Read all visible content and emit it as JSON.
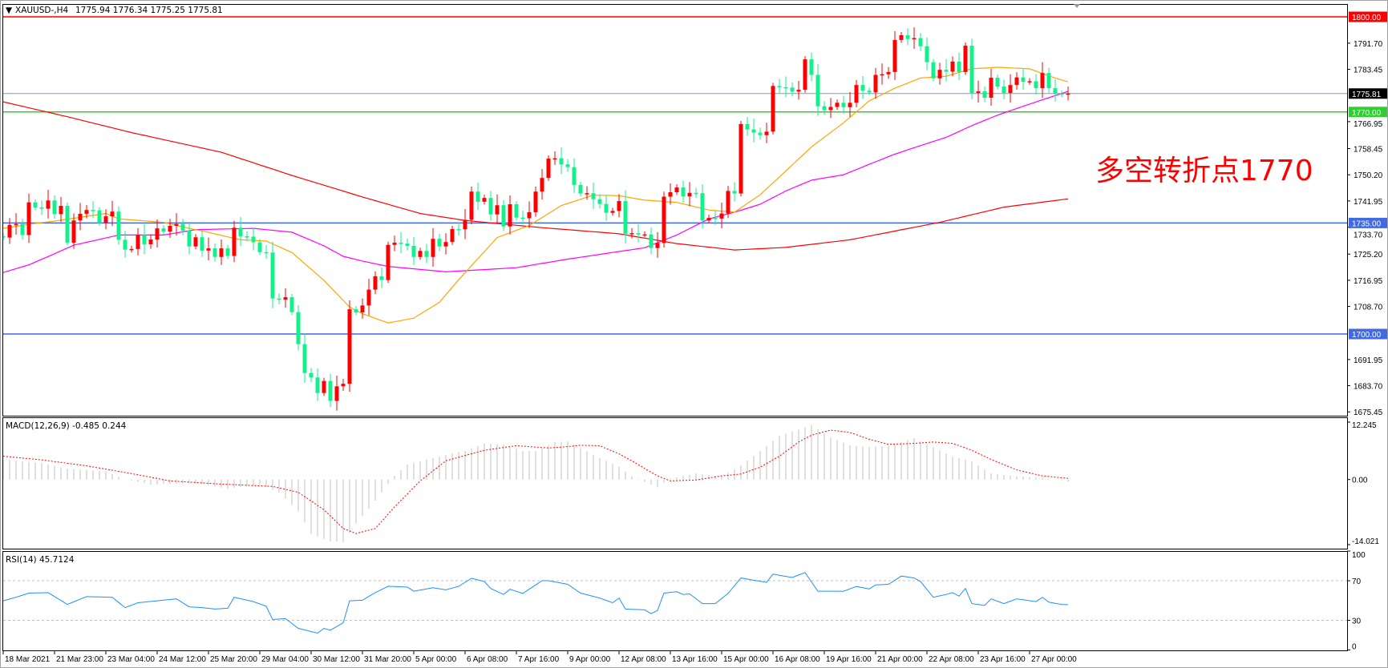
{
  "header": {
    "menu_arrow": "▼",
    "symbol": "XAUUSD-,H4",
    "ohlc": "1775.94 1776.34 1775.25 1775.81"
  },
  "annotation": "多空转折点1770",
  "colors": {
    "bull": "#ff0000",
    "bear": "#14f08c",
    "ma_fast": "#ffa500",
    "ma_mid": "#ff00ff",
    "ma_slow": "#ff0000",
    "macd_hist": "#c0c0c0",
    "macd_signal": "#ff0000",
    "rsi": "#1e90ff"
  },
  "price_axis": {
    "ticks": [
      "1791.70",
      "1783.45",
      "1766.95",
      "1758.45",
      "1750.20",
      "1741.95",
      "1733.70",
      "1725.20",
      "1716.95",
      "1708.70",
      "1691.95",
      "1683.70",
      "1675.45"
    ],
    "levels": [
      {
        "label": "1800.00",
        "color": "#ff0000",
        "line": "#ff0000"
      },
      {
        "label": "1770.00",
        "color": "#32cd32",
        "line": "#32cd32"
      },
      {
        "label": "1735.00",
        "color": "#4169e1",
        "line": "#4169e1"
      },
      {
        "label": "1700.00",
        "color": "#4169e1",
        "line": "#4169e1"
      }
    ],
    "current": {
      "label": "1775.81",
      "color": "#000000",
      "line": "#8a98a8"
    }
  },
  "time_axis": [
    "18 Mar 2021",
    "21 Mar 23:00",
    "23 Mar 04:00",
    "24 Mar 12:00",
    "25 Mar 20:00",
    "29 Mar 04:00",
    "30 Mar 12:00",
    "31 Mar 20:00",
    "5 Apr 00:00",
    "6 Apr 08:00",
    "7 Apr 16:00",
    "9 Apr 00:00",
    "12 Apr 08:00",
    "13 Apr 16:00",
    "15 Apr 00:00",
    "16 Apr 08:00",
    "19 Apr 16:00",
    "21 Apr 00:00",
    "22 Apr 08:00",
    "23 Apr 16:00",
    "27 Apr 00:00"
  ],
  "macd": {
    "title": "MACD(12,26,9) -0.485 0.244",
    "axis": [
      "12.245",
      "0.00",
      "-14.021"
    ]
  },
  "rsi": {
    "title": "RSI(14) 45.7124",
    "axis": [
      "100",
      "70",
      "30",
      "0"
    ],
    "levels": [
      70,
      30
    ]
  },
  "chart_data": {
    "type": "candlestick",
    "timeframe": "H4",
    "ylim": [
      1675.45,
      1800.0
    ],
    "first_open": 1730.8,
    "closes": [
      1730.4,
      1734.4,
      1734.7,
      1731.2,
      1741.5,
      1739.9,
      1739.5,
      1742.1,
      1737.8,
      1740.4,
      1728.8,
      1735.8,
      1737.9,
      1739.1,
      1739.0,
      1735.0,
      1737.1,
      1738.6,
      1729.7,
      1726.6,
      1726.8,
      1731.2,
      1728.3,
      1729.8,
      1733.3,
      1732.3,
      1734.1,
      1734.7,
      1732.6,
      1727.6,
      1730.5,
      1726.3,
      1727.0,
      1724.3,
      1727.0,
      1724.6,
      1733.5,
      1730.8,
      1730.7,
      1728.9,
      1725.8,
      1725.7,
      1711.2,
      1710.8,
      1711.6,
      1706.9,
      1696.8,
      1687.7,
      1686.3,
      1681.4,
      1685.2,
      1678.9,
      1683.5,
      1684.3,
      1707.8,
      1706.8,
      1709.0,
      1714.0,
      1718.2,
      1717.0,
      1728.1,
      1728.8,
      1728.5,
      1727.8,
      1724.3,
      1726.2,
      1724.3,
      1730.0,
      1727.6,
      1729.0,
      1733.1,
      1733.0,
      1736.0,
      1744.9,
      1741.7,
      1742.9,
      1737.7,
      1740.6,
      1733.9,
      1740.9,
      1736.7,
      1736.5,
      1738.4,
      1744.9,
      1749.2,
      1755.3,
      1755.4,
      1753.5,
      1752.6,
      1747.0,
      1744.3,
      1744.4,
      1742.5,
      1741.0,
      1738.2,
      1738.8,
      1741.9,
      1731.6,
      1731.8,
      1731.4,
      1731.4,
      1727.1,
      1728.7,
      1743.3,
      1744.7,
      1746.2,
      1743.4,
      1744.5,
      1744.4,
      1735.8,
      1736.6,
      1736.4,
      1738.0,
      1745.1,
      1744.3,
      1766.2,
      1764.5,
      1763.5,
      1762.7,
      1763.8,
      1778.2,
      1777.8,
      1777.7,
      1776.4,
      1777.0,
      1786.6,
      1781.7,
      1771.8,
      1770.6,
      1771.6,
      1772.9,
      1771.5,
      1772.9,
      1778.5,
      1776.7,
      1776.2,
      1781.7,
      1781.9,
      1782.6,
      1792.7,
      1794.2,
      1793.0,
      1793.3,
      1790.7,
      1785.7,
      1780.6,
      1783.3,
      1782.7,
      1785.9,
      1782.6,
      1790.9,
      1776.0,
      1776.5,
      1774.5,
      1780.8,
      1778.0,
      1776.0,
      1778.5,
      1780.9,
      1779.5,
      1779.7,
      1777.5,
      1782.3,
      1777.5,
      1775.8,
      1775.6,
      1775.81
    ],
    "horizontal_levels": [
      1800.0,
      1770.0,
      1735.0,
      1700.0
    ],
    "current_price": 1775.81,
    "moving_averages": {
      "fast": [
        [
          0,
          1733.3
        ],
        [
          4,
          1734.6
        ],
        [
          8,
          1735.6
        ],
        [
          16,
          1738
        ],
        [
          18,
          1736.3
        ],
        [
          25,
          1735.2
        ],
        [
          29,
          1733.3
        ],
        [
          31,
          1732.5
        ],
        [
          37,
          1729.7
        ],
        [
          41,
          1729.3
        ],
        [
          45,
          1725.7
        ],
        [
          50,
          1716.9
        ],
        [
          54,
          1708.5
        ],
        [
          56,
          1706.4
        ],
        [
          60,
          1703.5
        ],
        [
          64,
          1705
        ],
        [
          68,
          1710
        ],
        [
          71,
          1717.1
        ],
        [
          77,
          1730.4
        ],
        [
          82,
          1734.2
        ],
        [
          87,
          1740.5
        ],
        [
          92,
          1743.8
        ],
        [
          96,
          1743.6
        ],
        [
          100,
          1742.2
        ],
        [
          105,
          1741.5
        ],
        [
          110,
          1739.1
        ],
        [
          114,
          1738.4
        ],
        [
          118,
          1743.9
        ],
        [
          122,
          1751.4
        ],
        [
          126,
          1759
        ],
        [
          131,
          1766.6
        ],
        [
          135,
          1773.5
        ],
        [
          139,
          1777.5
        ],
        [
          143,
          1780.7
        ],
        [
          147,
          1781.3
        ],
        [
          151,
          1783.6
        ],
        [
          155,
          1784.1
        ],
        [
          160,
          1783.6
        ],
        [
          164,
          1780.7
        ],
        [
          166,
          1779.5
        ]
      ],
      "mid": [
        [
          0,
          1719.4
        ],
        [
          4,
          1721.8
        ],
        [
          8,
          1725.3
        ],
        [
          11,
          1728
        ],
        [
          18,
          1731.2
        ],
        [
          25,
          1731.2
        ],
        [
          30,
          1732.9
        ],
        [
          39,
          1733.3
        ],
        [
          45,
          1732.1
        ],
        [
          50,
          1727.8
        ],
        [
          53,
          1724.5
        ],
        [
          56,
          1723
        ],
        [
          60,
          1721.3
        ],
        [
          69,
          1719.6
        ],
        [
          80,
          1720.9
        ],
        [
          88,
          1723.6
        ],
        [
          96,
          1726
        ],
        [
          100,
          1727.2
        ],
        [
          105,
          1731.2
        ],
        [
          110,
          1736.3
        ],
        [
          114,
          1738.4
        ],
        [
          118,
          1740.9
        ],
        [
          122,
          1745.1
        ],
        [
          126,
          1748.5
        ],
        [
          131,
          1750.2
        ],
        [
          135,
          1753.5
        ],
        [
          139,
          1756.7
        ],
        [
          143,
          1759.4
        ],
        [
          147,
          1762
        ],
        [
          151,
          1765.7
        ],
        [
          155,
          1769
        ],
        [
          160,
          1772.5
        ],
        [
          166,
          1776.5
        ]
      ],
      "slow": [
        [
          0,
          1773.2
        ],
        [
          10,
          1768.5
        ],
        [
          20,
          1763.5
        ],
        [
          34,
          1757.3
        ],
        [
          45,
          1750
        ],
        [
          56,
          1743.2
        ],
        [
          65,
          1738
        ],
        [
          72,
          1735.8
        ],
        [
          83,
          1733.7
        ],
        [
          96,
          1731.6
        ],
        [
          105,
          1728.5
        ],
        [
          114,
          1726.5
        ],
        [
          122,
          1727.3
        ],
        [
          132,
          1729.7
        ],
        [
          146,
          1735.2
        ],
        [
          156,
          1740
        ],
        [
          166,
          1742.6
        ]
      ]
    },
    "macd_hist": [
      [
        0,
        4.4
      ],
      [
        6,
        3.6
      ],
      [
        10,
        2.4
      ],
      [
        16,
        1.8
      ],
      [
        19,
        0
      ],
      [
        23,
        -1.1
      ],
      [
        30,
        -0.8
      ],
      [
        35,
        -2.0
      ],
      [
        40,
        -1.1
      ],
      [
        43,
        -2.8
      ],
      [
        46,
        -6.9
      ],
      [
        48,
        -11.9
      ],
      [
        51,
        -13.5
      ],
      [
        53,
        -13.7
      ],
      [
        55,
        -9.6
      ],
      [
        57,
        -6.4
      ],
      [
        59,
        -2.8
      ],
      [
        61,
        0.8
      ],
      [
        63,
        3.3
      ],
      [
        67,
        4.7
      ],
      [
        72,
        6.3
      ],
      [
        75,
        7.9
      ],
      [
        78,
        7.7
      ],
      [
        81,
        6.2
      ],
      [
        83,
        6.2
      ],
      [
        85,
        7.5
      ],
      [
        86,
        8.2
      ],
      [
        88,
        8.3
      ],
      [
        90,
        6.9
      ],
      [
        93,
        4.7
      ],
      [
        96,
        2.8
      ],
      [
        98,
        0.7
      ],
      [
        100,
        -0.5
      ],
      [
        102,
        -1.7
      ],
      [
        104,
        0.2
      ],
      [
        108,
        1.3
      ],
      [
        112,
        0.7
      ],
      [
        115,
        3.1
      ],
      [
        118,
        6.2
      ],
      [
        121,
        9.6
      ],
      [
        124,
        10.9
      ],
      [
        126,
        11.9
      ],
      [
        129,
        9.2
      ],
      [
        132,
        7.5
      ],
      [
        135,
        7.1
      ],
      [
        138,
        7.4
      ],
      [
        142,
        9.0
      ],
      [
        145,
        7.1
      ],
      [
        148,
        5.0
      ],
      [
        151,
        4.0
      ],
      [
        154,
        1.3
      ],
      [
        158,
        0.7
      ],
      [
        162,
        0.4
      ],
      [
        166,
        -0.485
      ]
    ],
    "macd_signal": [
      [
        0,
        5.1
      ],
      [
        6,
        4.3
      ],
      [
        13,
        3.0
      ],
      [
        20,
        1.3
      ],
      [
        26,
        -0.3
      ],
      [
        34,
        -1.0
      ],
      [
        42,
        -1.5
      ],
      [
        46,
        -2.8
      ],
      [
        50,
        -6.6
      ],
      [
        53,
        -10.7
      ],
      [
        55,
        -11.8
      ],
      [
        58,
        -10.7
      ],
      [
        61,
        -6.0
      ],
      [
        65,
        -0.3
      ],
      [
        69,
        4.1
      ],
      [
        75,
        6.4
      ],
      [
        80,
        7.4
      ],
      [
        85,
        6.9
      ],
      [
        88,
        7.2
      ],
      [
        90,
        7.5
      ],
      [
        93,
        7.4
      ],
      [
        96,
        5.6
      ],
      [
        98,
        4.1
      ],
      [
        100,
        2.4
      ],
      [
        102,
        0.8
      ],
      [
        104,
        -0.3
      ],
      [
        108,
        -0.1
      ],
      [
        112,
        0.8
      ],
      [
        115,
        1.2
      ],
      [
        118,
        2.7
      ],
      [
        121,
        5.1
      ],
      [
        124,
        8.2
      ],
      [
        126,
        9.7
      ],
      [
        129,
        10.8
      ],
      [
        132,
        10.3
      ],
      [
        135,
        8.8
      ],
      [
        138,
        7.7
      ],
      [
        142,
        7.9
      ],
      [
        145,
        8.2
      ],
      [
        148,
        7.9
      ],
      [
        151,
        6.4
      ],
      [
        154,
        4.4
      ],
      [
        158,
        2.1
      ],
      [
        162,
        0.8
      ],
      [
        166,
        0.244
      ]
    ],
    "macd_ylim": [
      -14.021,
      12.245
    ],
    "rsi": [
      [
        0,
        49.7
      ],
      [
        2,
        53.3
      ],
      [
        4,
        57.5
      ],
      [
        7,
        58
      ],
      [
        10,
        46.1
      ],
      [
        13,
        53.9
      ],
      [
        17,
        53.3
      ],
      [
        19,
        42.8
      ],
      [
        21,
        47.8
      ],
      [
        24,
        49.7
      ],
      [
        27,
        51.7
      ],
      [
        29,
        43.6
      ],
      [
        31,
        42.8
      ],
      [
        33,
        41.4
      ],
      [
        35,
        42.2
      ],
      [
        36,
        53.3
      ],
      [
        39,
        48.9
      ],
      [
        41,
        44.2
      ],
      [
        42,
        30.8
      ],
      [
        44,
        31.7
      ],
      [
        46,
        21.9
      ],
      [
        49,
        17
      ],
      [
        50,
        21.9
      ],
      [
        51,
        20
      ],
      [
        53,
        27.5
      ],
      [
        54,
        49.7
      ],
      [
        56,
        50.3
      ],
      [
        58,
        58
      ],
      [
        60,
        64.4
      ],
      [
        63,
        63.6
      ],
      [
        64,
        59.4
      ],
      [
        67,
        63
      ],
      [
        69,
        60.8
      ],
      [
        71,
        64.4
      ],
      [
        73,
        72.5
      ],
      [
        75,
        69.2
      ],
      [
        76,
        62.2
      ],
      [
        78,
        56.1
      ],
      [
        79,
        61.4
      ],
      [
        81,
        57.2
      ],
      [
        84,
        70
      ],
      [
        85,
        70
      ],
      [
        88,
        66.4
      ],
      [
        90,
        57.5
      ],
      [
        93,
        52.5
      ],
      [
        95,
        47.8
      ],
      [
        96,
        52.5
      ],
      [
        97,
        41.4
      ],
      [
        100,
        40.6
      ],
      [
        101,
        36.7
      ],
      [
        102,
        40
      ],
      [
        103,
        57.5
      ],
      [
        105,
        58.9
      ],
      [
        106,
        56.1
      ],
      [
        107,
        56.7
      ],
      [
        109,
        46.9
      ],
      [
        111,
        46.9
      ],
      [
        113,
        57.2
      ],
      [
        115,
        72.8
      ],
      [
        119,
        68.3
      ],
      [
        120,
        76.7
      ],
      [
        123,
        73.3
      ],
      [
        125,
        78.3
      ],
      [
        127,
        59.4
      ],
      [
        131,
        59.4
      ],
      [
        133,
        64.2
      ],
      [
        135,
        61.7
      ],
      [
        136,
        65.8
      ],
      [
        138,
        66.4
      ],
      [
        140,
        74.7
      ],
      [
        142,
        72.8
      ],
      [
        143,
        69.2
      ],
      [
        145,
        53.3
      ],
      [
        147,
        56.1
      ],
      [
        148,
        58
      ],
      [
        149,
        54.4
      ],
      [
        150,
        62.2
      ],
      [
        151,
        46.9
      ],
      [
        153,
        45
      ],
      [
        154,
        51.7
      ],
      [
        156,
        46.9
      ],
      [
        158,
        51.7
      ],
      [
        161,
        48.9
      ],
      [
        162,
        53.3
      ],
      [
        163,
        48.3
      ],
      [
        165,
        46.1
      ],
      [
        166,
        45.7124
      ]
    ],
    "rsi_ylim": [
      0,
      100
    ]
  }
}
